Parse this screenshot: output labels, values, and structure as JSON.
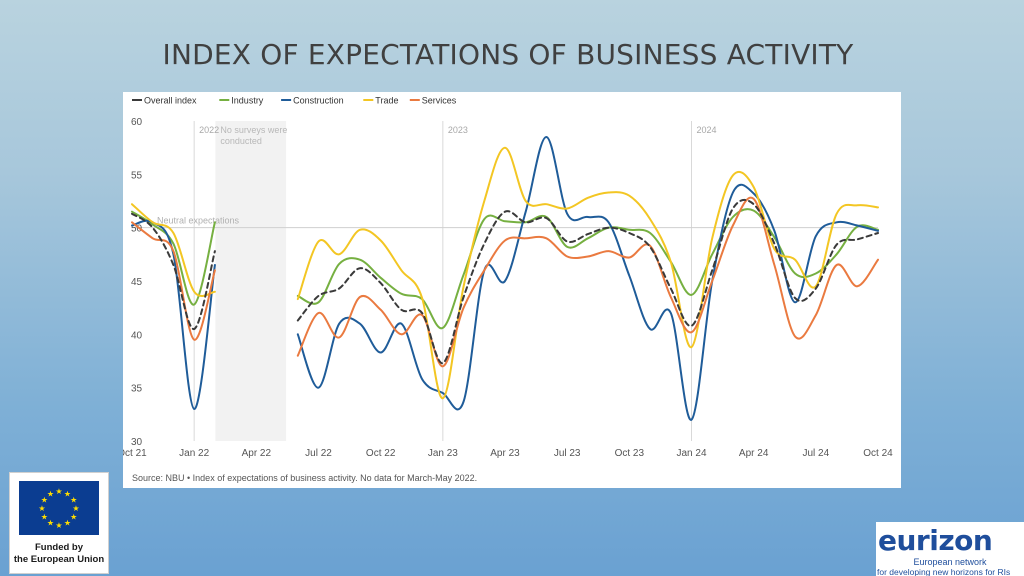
{
  "slide": {
    "title": "INDEX OF EXPECTATIONS OF BUSINESS ACTIVITY",
    "eu_caption_line1": "Funded by",
    "eu_caption_line2": "the European Union",
    "eurizon_name": "eurizon",
    "eurizon_line1": "European network",
    "eurizon_line2": "for developing new horizons for RIs"
  },
  "chart_data": {
    "type": "line",
    "title": "",
    "xlabel": "",
    "ylabel": "",
    "ylim": [
      30,
      60
    ],
    "yticks": [
      30,
      35,
      40,
      45,
      50,
      55,
      60
    ],
    "x_tick_labels": [
      "Oct 21",
      "Jan 22",
      "Apr 22",
      "Jul 22",
      "Oct 22",
      "Jan 23",
      "Apr 23",
      "Jul 23",
      "Oct 23",
      "Jan 24",
      "Apr 24",
      "Jul 24",
      "Oct 24"
    ],
    "year_markers": [
      {
        "label": "2022",
        "month": "Jan 22"
      },
      {
        "label": "2023",
        "month": "Jan 23"
      },
      {
        "label": "2024",
        "month": "Jan 24"
      }
    ],
    "no_data_period": {
      "from": "Feb 22",
      "to": "May 22",
      "label_line1": "No surveys were",
      "label_line2": "conducted"
    },
    "reference_line": {
      "value": 50,
      "label": "Neutral expectations"
    },
    "grid": false,
    "legend": "top-left",
    "source_note": "Source: NBU • Index of expectations of business activity. No data for March-May 2022.",
    "series": [
      {
        "name": "Overall index",
        "color": "#3a3a3a",
        "dashed": true,
        "segments": [
          [
            [
              "Oct 21",
              51.3
            ],
            [
              "Nov 21",
              50.0
            ],
            [
              "Dec 21",
              46.5
            ],
            [
              "Jan 22",
              40.5
            ],
            [
              "Feb 22",
              47.8
            ]
          ],
          [
            [
              "Jun 22",
              41.3
            ],
            [
              "Jul 22",
              43.6
            ],
            [
              "Aug 22",
              44.3
            ],
            [
              "Sep 22",
              46.2
            ],
            [
              "Oct 22",
              44.8
            ],
            [
              "Nov 22",
              42.3
            ],
            [
              "Dec 22",
              42.0
            ],
            [
              "Jan 23",
              37.3
            ],
            [
              "Feb 23",
              43.5
            ],
            [
              "Mar 23",
              48.5
            ],
            [
              "Apr 23",
              51.5
            ],
            [
              "May 23",
              50.5
            ],
            [
              "Jun 23",
              50.9
            ],
            [
              "Jul 23",
              48.7
            ],
            [
              "Aug 23",
              49.4
            ],
            [
              "Sep 23",
              50.0
            ],
            [
              "Oct 23",
              49.5
            ],
            [
              "Nov 23",
              48.2
            ],
            [
              "Dec 23",
              44.3
            ],
            [
              "Jan 24",
              40.8
            ],
            [
              "Feb 24",
              46.0
            ],
            [
              "Mar 24",
              51.8
            ],
            [
              "Apr 24",
              52.2
            ],
            [
              "May 24",
              48.5
            ],
            [
              "Jun 24",
              43.4
            ],
            [
              "Jul 24",
              44.3
            ],
            [
              "Aug 24",
              48.4
            ],
            [
              "Sep 24",
              48.9
            ],
            [
              "Oct 24",
              49.5
            ]
          ]
        ]
      },
      {
        "name": "Industry",
        "color": "#76b041",
        "dashed": false,
        "segments": [
          [
            [
              "Oct 21",
              51.5
            ],
            [
              "Nov 21",
              50.3
            ],
            [
              "Dec 21",
              48.5
            ],
            [
              "Jan 22",
              42.8
            ],
            [
              "Feb 22",
              50.5
            ]
          ],
          [
            [
              "Jun 22",
              43.6
            ],
            [
              "Jul 22",
              43.0
            ],
            [
              "Aug 22",
              46.6
            ],
            [
              "Sep 22",
              47.0
            ],
            [
              "Oct 22",
              45.3
            ],
            [
              "Nov 22",
              43.8
            ],
            [
              "Dec 22",
              43.3
            ],
            [
              "Jan 23",
              40.6
            ],
            [
              "Feb 23",
              45.6
            ],
            [
              "Mar 23",
              50.8
            ],
            [
              "Apr 23",
              50.6
            ],
            [
              "May 23",
              50.5
            ],
            [
              "Jun 23",
              51.0
            ],
            [
              "Jul 23",
              48.2
            ],
            [
              "Aug 23",
              49.0
            ],
            [
              "Sep 23",
              50.0
            ],
            [
              "Oct 23",
              49.8
            ],
            [
              "Nov 23",
              49.5
            ],
            [
              "Dec 23",
              46.8
            ],
            [
              "Jan 24",
              43.7
            ],
            [
              "Feb 24",
              47.5
            ],
            [
              "Mar 24",
              51.0
            ],
            [
              "Apr 24",
              51.6
            ],
            [
              "May 24",
              49.1
            ],
            [
              "Jun 24",
              45.7
            ],
            [
              "Jul 24",
              45.7
            ],
            [
              "Aug 24",
              47.5
            ],
            [
              "Sep 24",
              50.1
            ],
            [
              "Oct 24",
              49.8
            ]
          ]
        ]
      },
      {
        "name": "Construction",
        "color": "#1f5c99",
        "dashed": false,
        "segments": [
          [
            [
              "Oct 21",
              50.2
            ],
            [
              "Nov 21",
              50.5
            ],
            [
              "Dec 21",
              47.5
            ],
            [
              "Jan 22",
              33.0
            ],
            [
              "Feb 22",
              46.5
            ]
          ],
          [
            [
              "Jun 22",
              40.0
            ],
            [
              "Jul 22",
              35.0
            ],
            [
              "Aug 22",
              41.0
            ],
            [
              "Sep 22",
              41.0
            ],
            [
              "Oct 22",
              38.3
            ],
            [
              "Nov 22",
              41.0
            ],
            [
              "Dec 22",
              35.8
            ],
            [
              "Jan 23",
              34.5
            ],
            [
              "Feb 23",
              33.7
            ],
            [
              "Mar 23",
              46.0
            ],
            [
              "Apr 23",
              45.0
            ],
            [
              "May 23",
              51.5
            ],
            [
              "Jun 23",
              58.5
            ],
            [
              "Jul 23",
              51.3
            ],
            [
              "Aug 23",
              51.0
            ],
            [
              "Sep 23",
              50.5
            ],
            [
              "Oct 23",
              45.5
            ],
            [
              "Nov 23",
              40.5
            ],
            [
              "Dec 23",
              42.0
            ],
            [
              "Jan 24",
              32.0
            ],
            [
              "Feb 24",
              45.0
            ],
            [
              "Mar 24",
              53.3
            ],
            [
              "Apr 24",
              53.2
            ],
            [
              "May 24",
              49.7
            ],
            [
              "Jun 24",
              43.0
            ],
            [
              "Jul 24",
              49.2
            ],
            [
              "Aug 24",
              50.5
            ],
            [
              "Sep 24",
              50.2
            ],
            [
              "Oct 24",
              49.7
            ]
          ]
        ]
      },
      {
        "name": "Trade",
        "color": "#f3c623",
        "dashed": false,
        "segments": [
          [
            [
              "Oct 21",
              52.2
            ],
            [
              "Nov 21",
              50.5
            ],
            [
              "Dec 21",
              49.5
            ],
            [
              "Jan 22",
              44.0
            ],
            [
              "Feb 22",
              44.0
            ]
          ],
          [
            [
              "Jun 22",
              43.3
            ],
            [
              "Jul 22",
              48.7
            ],
            [
              "Aug 22",
              47.5
            ],
            [
              "Sep 22",
              49.8
            ],
            [
              "Oct 22",
              48.8
            ],
            [
              "Nov 22",
              46.0
            ],
            [
              "Dec 22",
              43.4
            ],
            [
              "Jan 23",
              34.0
            ],
            [
              "Feb 23",
              44.5
            ],
            [
              "Mar 23",
              52.5
            ],
            [
              "Apr 23",
              57.5
            ],
            [
              "May 23",
              52.5
            ],
            [
              "Jun 23",
              52.2
            ],
            [
              "Jul 23",
              51.8
            ],
            [
              "Aug 23",
              52.8
            ],
            [
              "Sep 23",
              53.3
            ],
            [
              "Oct 23",
              53.0
            ],
            [
              "Nov 23",
              50.8
            ],
            [
              "Dec 23",
              46.8
            ],
            [
              "Jan 24",
              38.8
            ],
            [
              "Feb 24",
              49.0
            ],
            [
              "Mar 24",
              54.9
            ],
            [
              "Apr 24",
              53.8
            ],
            [
              "May 24",
              48.0
            ],
            [
              "Jun 24",
              47.0
            ],
            [
              "Jul 24",
              44.5
            ],
            [
              "Aug 24",
              51.3
            ],
            [
              "Sep 24",
              52.1
            ],
            [
              "Oct 24",
              51.9
            ]
          ]
        ]
      },
      {
        "name": "Services",
        "color": "#ea7a40",
        "dashed": false,
        "segments": [
          [
            [
              "Oct 21",
              50.5
            ],
            [
              "Nov 21",
              49.0
            ],
            [
              "Dec 21",
              47.8
            ],
            [
              "Jan 22",
              39.5
            ],
            [
              "Feb 22",
              46.0
            ]
          ],
          [
            [
              "Jun 22",
              38.0
            ],
            [
              "Jul 22",
              42.0
            ],
            [
              "Aug 22",
              39.7
            ],
            [
              "Sep 22",
              43.5
            ],
            [
              "Oct 22",
              42.3
            ],
            [
              "Nov 22",
              40.0
            ],
            [
              "Dec 22",
              41.8
            ],
            [
              "Jan 23",
              37.0
            ],
            [
              "Feb 23",
              42.5
            ],
            [
              "Mar 23",
              46.0
            ],
            [
              "Apr 23",
              48.8
            ],
            [
              "May 23",
              49.0
            ],
            [
              "Jun 23",
              49.0
            ],
            [
              "Jul 23",
              47.3
            ],
            [
              "Aug 23",
              47.3
            ],
            [
              "Sep 23",
              47.8
            ],
            [
              "Oct 23",
              47.2
            ],
            [
              "Nov 23",
              48.3
            ],
            [
              "Dec 23",
              43.5
            ],
            [
              "Jan 24",
              40.2
            ],
            [
              "Feb 24",
              45.0
            ],
            [
              "Mar 24",
              50.2
            ],
            [
              "Apr 24",
              52.7
            ],
            [
              "May 24",
              46.5
            ],
            [
              "Jun 24",
              39.8
            ],
            [
              "Jul 24",
              41.8
            ],
            [
              "Aug 24",
              46.5
            ],
            [
              "Sep 24",
              44.5
            ],
            [
              "Oct 24",
              47.0
            ]
          ]
        ]
      }
    ]
  }
}
